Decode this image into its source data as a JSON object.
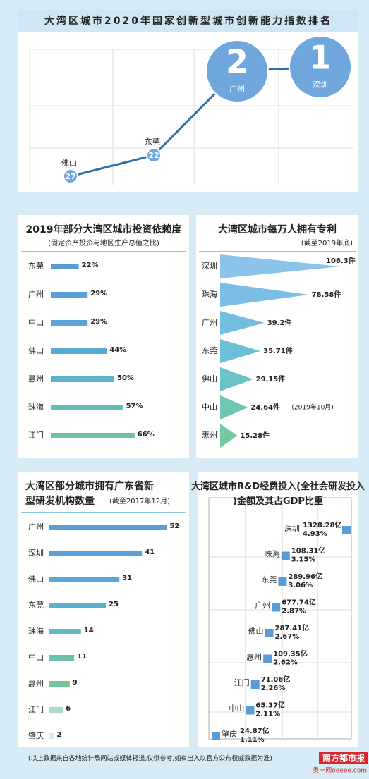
{
  "chart_data": [
    {
      "type": "rank-line",
      "title": "大湾区城市2020年国家创新型城市创新能力指数排名",
      "categories": [
        "佛山",
        "东莞",
        "广州",
        "深圳"
      ],
      "values": [
        27,
        22,
        2,
        1
      ],
      "color": "#2f6ea8",
      "marker_color": "#6fa6dc",
      "y_inverted": true
    },
    {
      "type": "hbar",
      "title": "2019年部分大湾区城市投资依赖度",
      "subtitle": "(固定资产投资与地区生产总值之比)",
      "categories": [
        "东莞",
        "广州",
        "中山",
        "佛山",
        "惠州",
        "珠海",
        "江门"
      ],
      "values": [
        22,
        29,
        29,
        44,
        50,
        57,
        66
      ],
      "value_labels": [
        "22%",
        "29%",
        "29%",
        "44%",
        "50%",
        "57%",
        "66%"
      ],
      "colors": [
        "#5b9bd8",
        "#5b9fd8",
        "#5ba5d6",
        "#5aabd4",
        "#5db4cc",
        "#62bcbc",
        "#6cc2a4"
      ]
    },
    {
      "type": "triangle",
      "title": "大湾区城市每万人拥有专利",
      "subtitle": "(截至2019年底)",
      "categories": [
        "深圳",
        "珠海",
        "广州",
        "东莞",
        "佛山",
        "中山",
        "惠州"
      ],
      "values": [
        106.3,
        78.58,
        39.2,
        35.71,
        29.15,
        24.64,
        15.28
      ],
      "value_labels": [
        "106.3件",
        "78.58件",
        "39.2件",
        "35.71件",
        "29.15件",
        "24.64件",
        "15.28件"
      ],
      "annotations": [
        null,
        null,
        null,
        null,
        null,
        "(2019年10月)",
        null
      ],
      "colors": [
        "#8cc3ea",
        "#7cbde6",
        "#72bde0",
        "#6bbfd6",
        "#6cc3c6",
        "#70c6b4",
        "#74c8a2"
      ]
    },
    {
      "type": "hbar",
      "title": "大湾区部分城市拥有广东省新型研发机构数量",
      "subtitle": "(截至2017年12月)",
      "categories": [
        "广州",
        "深圳",
        "佛山",
        "东莞",
        "珠海",
        "中山",
        "惠州",
        "江门",
        "肇庆"
      ],
      "values": [
        52,
        41,
        31,
        25,
        14,
        11,
        9,
        6,
        2
      ],
      "colors": [
        "#5b9bd8",
        "#5ba1d7",
        "#5aa8d5",
        "#5cb0cf",
        "#62bbc2",
        "#6bc1ab",
        "#74c598",
        "#a9dcc6",
        "#d0ece2"
      ]
    },
    {
      "type": "square-position",
      "title": "大湾区城市R&D经费投入(全社会研发投入)金额及其占GDP比重",
      "categories": [
        "深圳",
        "珠海",
        "东莞",
        "广州",
        "佛山",
        "惠州",
        "江门",
        "中山",
        "肇庆"
      ],
      "values": [
        4.93,
        3.15,
        3.06,
        2.87,
        2.67,
        2.62,
        2.26,
        2.11,
        1.11
      ],
      "value_labels": [
        "4.93%",
        "3.15%",
        "3.06%",
        "2.87%",
        "2.67%",
        "2.62%",
        "2.26%",
        "2.11%",
        "1.11%"
      ],
      "amounts": [
        1328.28,
        108.31,
        289.96,
        677.74,
        287.41,
        109.35,
        71.06,
        65.37,
        24.87
      ],
      "amount_labels": [
        "1328.28亿",
        "108.31亿",
        "289.96亿",
        "677.74亿",
        "287.41亿",
        "109.35亿",
        "71.06亿",
        "65.37亿",
        "24.87亿"
      ],
      "color": "#5b9bd8"
    }
  ],
  "footer": {
    "note": "(以上数据来自各地统计局网站或媒体报道,仅供参考,如有出入以官方公布权威数据为准)",
    "logo": "南方都市报",
    "site": "奥一网oeeee.com"
  }
}
